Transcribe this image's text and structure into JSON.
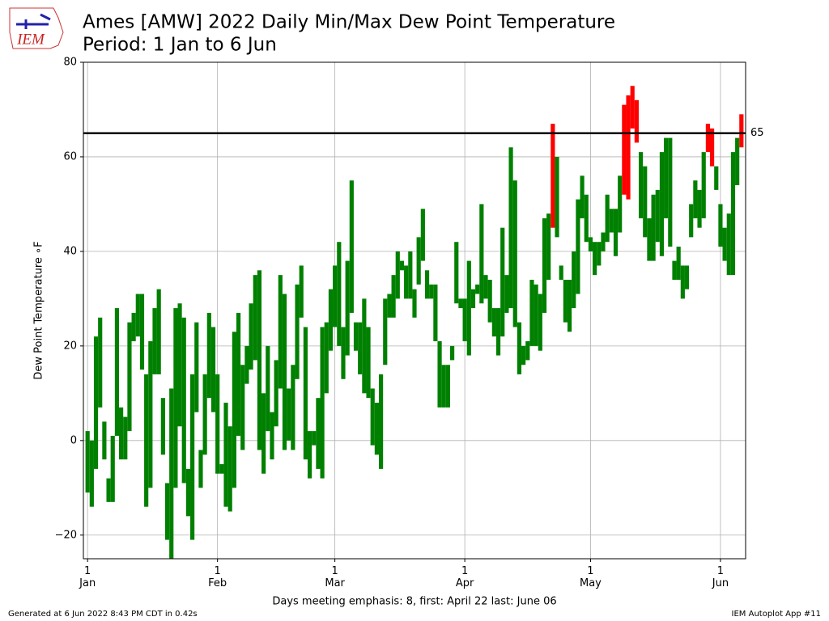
{
  "logo_text": "IEM",
  "chart_data": {
    "type": "floating_bar",
    "title": "Ames [AMW] 2022 Daily Min/Max Dew Point Temperature",
    "subtitle": "Period: 1 Jan to 6 Jun",
    "ylabel": "Dew Point Temperature ∘F",
    "xlabel": "Days meeting emphasis: 8, first: April 22 last: June 06",
    "footer_left": "Generated at 6 Jun 2022 8:43 PM CDT in 0.42s",
    "footer_right": "IEM Autoplot App #11",
    "color": "#008000",
    "emphasis_color": "#ff0000",
    "threshold": 65,
    "threshold_color": "#000000",
    "grid": true,
    "xlim": [
      -1,
      157
    ],
    "xticks": [
      {
        "value": 0,
        "label": "1\nJan"
      },
      {
        "value": 31,
        "label": "1\nFeb"
      },
      {
        "value": 59,
        "label": "1\nMar"
      },
      {
        "value": 90,
        "label": "1\nApr"
      },
      {
        "value": 120,
        "label": "1\nMay"
      },
      {
        "value": 151,
        "label": "1\nJun"
      }
    ],
    "ylim": [
      -25,
      80
    ],
    "yticks": [
      {
        "value": -20,
        "label": "−20"
      },
      0,
      20,
      40,
      60,
      80
    ],
    "lows": [
      -11,
      -14,
      -6,
      7,
      -4,
      -13,
      -13,
      1,
      -4,
      -4,
      2,
      21,
      22,
      15,
      -14,
      -10,
      14,
      14,
      -3,
      -21,
      -25,
      -10,
      3,
      -9,
      -16,
      -21,
      6,
      -10,
      -3,
      9,
      6,
      -7,
      -7,
      -14,
      -15,
      -10,
      1,
      -2,
      12,
      15,
      17,
      -2,
      -7,
      2,
      -4,
      3,
      11,
      -2,
      0,
      -2,
      13,
      26,
      -4,
      -8,
      -1,
      -6,
      -8,
      10,
      19,
      24,
      20,
      13,
      18,
      27,
      19,
      14,
      10,
      9,
      -1,
      -3,
      -6,
      16,
      26,
      26,
      30,
      36,
      30,
      30,
      26,
      33,
      38,
      30,
      30,
      21,
      7,
      7,
      7,
      17,
      29,
      28,
      21,
      18,
      28,
      31,
      29,
      30,
      25,
      22,
      18,
      22,
      27,
      28,
      24,
      14,
      16,
      17,
      20,
      20,
      19,
      27,
      34,
      45,
      43,
      34,
      25,
      23,
      28,
      31,
      47,
      42,
      40,
      35,
      37,
      40,
      42,
      44,
      39,
      44,
      52,
      51,
      66,
      63,
      47,
      43,
      38,
      38,
      42,
      39,
      47,
      41,
      34,
      34,
      30,
      32,
      43,
      47,
      45,
      47,
      61,
      58,
      53,
      41,
      38,
      35,
      35,
      54,
      62
    ],
    "highs": [
      2,
      0,
      22,
      26,
      4,
      -8,
      1,
      28,
      7,
      5,
      25,
      27,
      31,
      31,
      14,
      21,
      28,
      32,
      9,
      -9,
      11,
      28,
      29,
      26,
      -6,
      14,
      25,
      -2,
      14,
      27,
      24,
      14,
      -5,
      8,
      3,
      23,
      27,
      16,
      20,
      29,
      35,
      36,
      10,
      20,
      6,
      17,
      35,
      31,
      11,
      16,
      33,
      37,
      24,
      2,
      2,
      9,
      24,
      25,
      32,
      37,
      42,
      24,
      38,
      55,
      25,
      25,
      30,
      24,
      11,
      8,
      14,
      30,
      31,
      35,
      40,
      38,
      37,
      40,
      32,
      43,
      49,
      36,
      33,
      33,
      21,
      16,
      16,
      20,
      42,
      30,
      30,
      38,
      32,
      33,
      50,
      35,
      34,
      28,
      28,
      45,
      35,
      62,
      55,
      25,
      20,
      21,
      34,
      33,
      31,
      47,
      48,
      67,
      60,
      37,
      34,
      34,
      40,
      51,
      56,
      52,
      43,
      42,
      42,
      44,
      52,
      49,
      49,
      56,
      71,
      73,
      75,
      72,
      61,
      58,
      47,
      52,
      53,
      61,
      64,
      64,
      38,
      41,
      37,
      37,
      50,
      55,
      53,
      61,
      67,
      66,
      58,
      50,
      45,
      48,
      61,
      64,
      69
    ]
  }
}
